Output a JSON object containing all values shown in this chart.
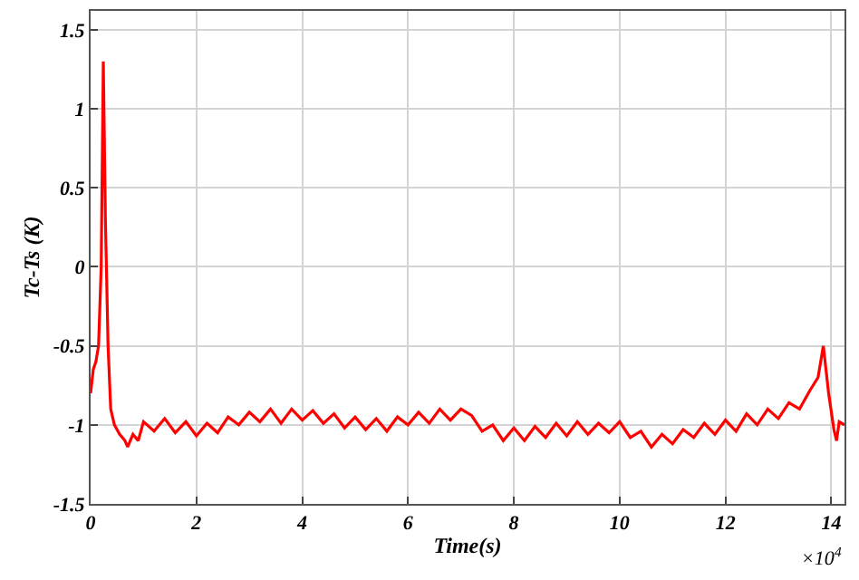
{
  "chart_data": {
    "type": "line",
    "xlabel": "Time(s)",
    "ylabel": "Tc-Ts (K)",
    "annotations": [
      "×10$^{4}$"
    ],
    "xlim": [
      0,
      14.25
    ],
    "xticks": [
      0,
      2,
      4,
      6,
      8,
      10,
      12,
      14
    ],
    "ylim": [
      -1.5,
      1.62
    ],
    "yticks": [
      -1.5,
      -1,
      -0.5,
      0,
      0.5,
      1,
      1.5
    ],
    "grid": true,
    "marker": "none",
    "line_style": "solid",
    "series": [
      {
        "color": "#ff0000",
        "x": [
          0,
          0.05,
          0.1,
          0.15,
          0.2,
          0.24,
          0.28,
          0.33,
          0.38,
          0.45,
          0.55,
          0.65,
          0.7,
          0.8,
          0.9,
          1.0,
          1.2,
          1.4,
          1.6,
          1.8,
          2.0,
          2.2,
          2.4,
          2.6,
          2.8,
          3.0,
          3.2,
          3.4,
          3.6,
          3.8,
          4.0,
          4.2,
          4.4,
          4.6,
          4.8,
          5.0,
          5.2,
          5.4,
          5.6,
          5.8,
          6.0,
          6.2,
          6.4,
          6.6,
          6.8,
          7.0,
          7.2,
          7.4,
          7.6,
          7.8,
          8.0,
          8.2,
          8.4,
          8.6,
          8.8,
          9.0,
          9.2,
          9.4,
          9.6,
          9.8,
          10.0,
          10.2,
          10.4,
          10.6,
          10.8,
          11.0,
          11.2,
          11.4,
          11.6,
          11.8,
          12.0,
          12.2,
          12.4,
          12.6,
          12.8,
          13.0,
          13.2,
          13.4,
          13.6,
          13.75,
          13.85,
          13.95,
          14.05,
          14.1,
          14.15,
          14.25
        ],
        "values": [
          -0.8,
          -0.65,
          -0.6,
          -0.5,
          0.0,
          1.3,
          0.3,
          -0.5,
          -0.9,
          -1.0,
          -1.06,
          -1.1,
          -1.14,
          -1.06,
          -1.1,
          -0.98,
          -1.04,
          -0.96,
          -1.05,
          -0.98,
          -1.07,
          -0.99,
          -1.05,
          -0.95,
          -1.0,
          -0.92,
          -0.98,
          -0.9,
          -0.99,
          -0.9,
          -0.97,
          -0.91,
          -0.99,
          -0.93,
          -1.02,
          -0.95,
          -1.03,
          -0.96,
          -1.04,
          -0.95,
          -1.0,
          -0.92,
          -0.99,
          -0.9,
          -0.97,
          -0.9,
          -0.94,
          -1.04,
          -1.0,
          -1.1,
          -1.02,
          -1.1,
          -1.01,
          -1.08,
          -0.99,
          -1.07,
          -0.98,
          -1.06,
          -0.99,
          -1.05,
          -0.98,
          -1.08,
          -1.04,
          -1.14,
          -1.06,
          -1.12,
          -1.03,
          -1.08,
          -0.99,
          -1.06,
          -0.97,
          -1.04,
          -0.93,
          -1.0,
          -0.9,
          -0.96,
          -0.86,
          -0.9,
          -0.78,
          -0.7,
          -0.5,
          -0.8,
          -1.03,
          -1.1,
          -0.98,
          -1.0
        ]
      }
    ]
  }
}
